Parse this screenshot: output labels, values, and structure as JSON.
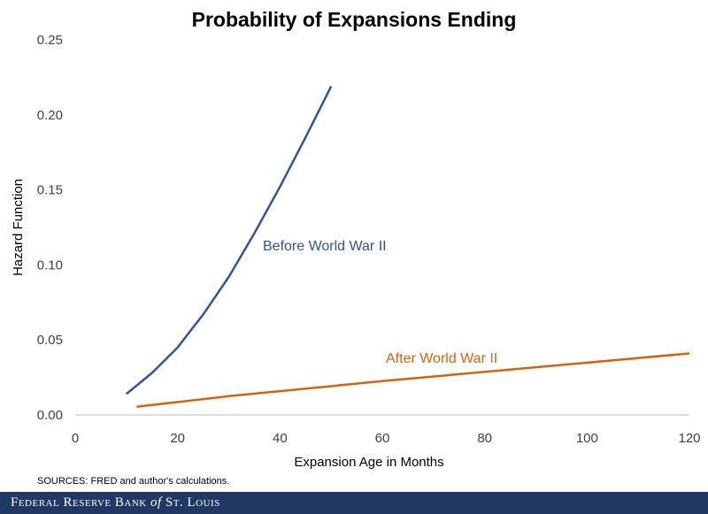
{
  "chart_data": {
    "type": "line",
    "title": "Probability of Expansions Ending",
    "xlabel": "Expansion Age in Months",
    "ylabel": "Hazard Function",
    "xlim": [
      0,
      120
    ],
    "ylim": [
      0,
      0.25
    ],
    "xticks": [
      "0",
      "20",
      "40",
      "60",
      "80",
      "100",
      "120"
    ],
    "yticks": [
      "0.00",
      "0.05",
      "0.10",
      "0.15",
      "0.20",
      "0.25"
    ],
    "grid": false,
    "series": [
      {
        "name": "Before World War II",
        "color": "#2f5597",
        "x": [
          10,
          15,
          20,
          25,
          30,
          35,
          40,
          45,
          50
        ],
        "y": [
          0.014,
          0.028,
          0.045,
          0.067,
          0.092,
          0.121,
          0.152,
          0.185,
          0.219
        ]
      },
      {
        "name": "After World War II",
        "color": "#d5620d",
        "x": [
          12,
          30,
          60,
          90,
          120
        ],
        "y": [
          0.0055,
          0.0125,
          0.0225,
          0.0318,
          0.041
        ]
      }
    ],
    "annotations": [
      "Before World War II",
      "After World War II"
    ]
  },
  "source": "SOURCES: FRED and author's calculations.",
  "footer": {
    "prefix": "Federal Reserve Bank ",
    "of": "of",
    "suffix": " St. Louis"
  }
}
